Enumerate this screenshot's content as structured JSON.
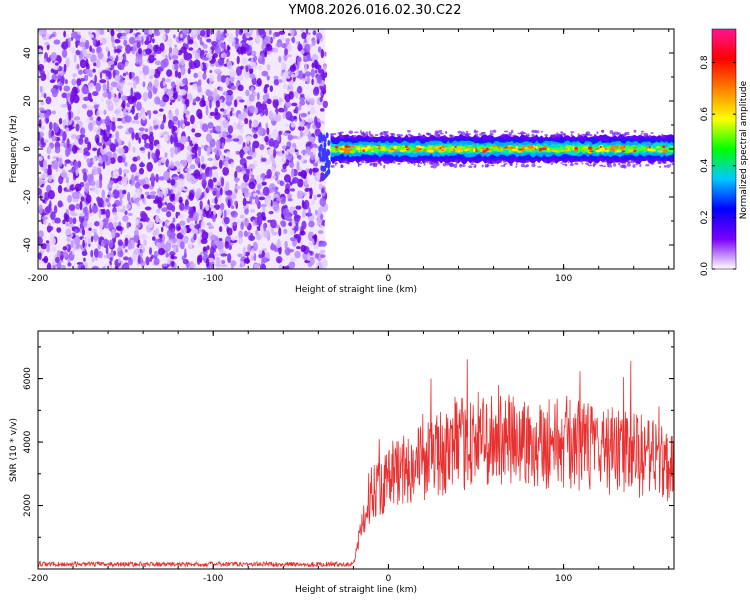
{
  "chart_data": [
    {
      "type": "heatmap",
      "title": "YM08.2026.016.02.30.C22",
      "xlabel": "Height of straight line (km)",
      "ylabel": "Frequency (Hz)",
      "xlim": [
        -200,
        163
      ],
      "ylim": [
        -50,
        50
      ],
      "xticks": [
        -200,
        -100,
        0,
        100
      ],
      "yticks": [
        -40,
        -20,
        0,
        20,
        40
      ],
      "noise_region_x": [
        -200,
        -36
      ],
      "signal_band": {
        "x_start": -33,
        "x_end": 163,
        "center_hz": 0,
        "halfwidth_hz": 5
      },
      "colorbar": {
        "label": "Normalized spectral amplitude",
        "ticks": [
          0.0,
          0.2,
          0.4,
          0.6,
          0.8
        ],
        "range": [
          0,
          0.93
        ],
        "colors": [
          "#ffffff",
          "#7a00ff",
          "#0000ff",
          "#00c8ff",
          "#00ff00",
          "#ffff00",
          "#ff8000",
          "#ff0000",
          "#ff1493"
        ]
      }
    },
    {
      "type": "line",
      "xlabel": "Height of straight line (km)",
      "ylabel": "SNR (10 * v/v)",
      "xlim": [
        -200,
        163
      ],
      "ylim": [
        0,
        7500
      ],
      "xticks": [
        -200,
        -100,
        0,
        100
      ],
      "yticks": [
        2000,
        4000,
        6000
      ],
      "color": "#e83030",
      "series": [
        {
          "name": "SNR",
          "x": [
            -200,
            -50,
            -20,
            -10,
            0,
            10,
            20,
            50,
            80,
            100,
            120,
            140,
            163
          ],
          "values": [
            150,
            150,
            150,
            2500,
            2800,
            3200,
            3400,
            4100,
            4000,
            4000,
            3800,
            3600,
            3300
          ]
        }
      ]
    }
  ]
}
